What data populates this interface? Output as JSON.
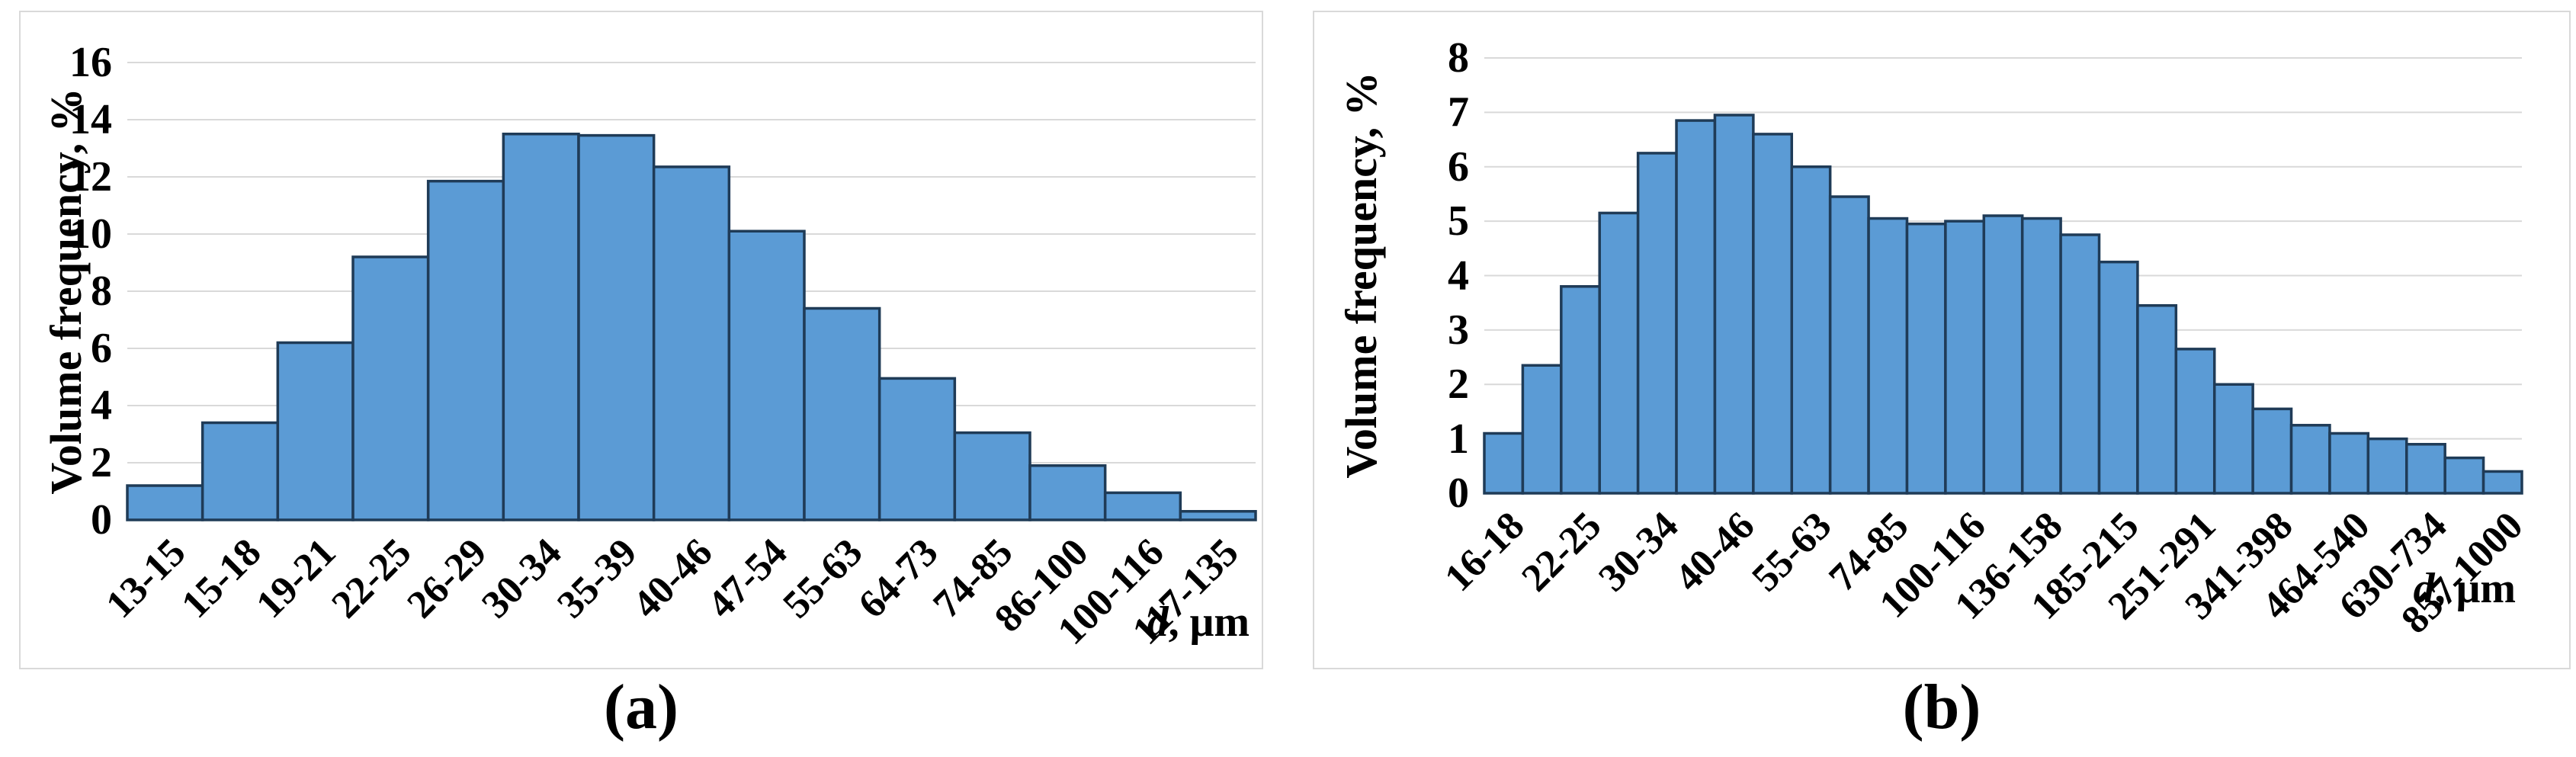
{
  "figure": {
    "captions": [
      "(a)",
      "(b)"
    ]
  },
  "chart_data": [
    {
      "id": "a",
      "type": "bar",
      "title": "",
      "ylabel": "Volume frequency, %",
      "xlabel": "d, μm",
      "xlabel_italic_part": "d",
      "xlabel_rest": ", μm",
      "ylim": [
        0,
        16
      ],
      "ytick_step": 2,
      "yticks": [
        0,
        2,
        4,
        6,
        8,
        10,
        12,
        14,
        16
      ],
      "gridlines": true,
      "x_tick_rotation_deg": 45,
      "bar_fill": "#5B9BD5",
      "bar_stroke": "#1F3B57",
      "gridline_color": "#D9D9D9",
      "categories": [
        "13-15",
        "15-18",
        "19-21",
        "22-25",
        "26-29",
        "30-34",
        "35-39",
        "40-46",
        "47-54",
        "55-63",
        "64-73",
        "74-85",
        "86-100",
        "100-116",
        "117-135"
      ],
      "values": [
        1.2,
        3.4,
        6.2,
        9.2,
        11.85,
        13.5,
        13.45,
        12.35,
        10.1,
        7.4,
        4.95,
        3.05,
        1.9,
        0.95,
        0.3
      ]
    },
    {
      "id": "b",
      "type": "bar",
      "title": "",
      "ylabel": "Volume frequency, %",
      "xlabel": "d, μm",
      "xlabel_italic_part": "d",
      "xlabel_rest": ", μm",
      "ylim": [
        0,
        8
      ],
      "ytick_step": 1,
      "yticks": [
        0,
        1,
        2,
        3,
        4,
        5,
        6,
        7,
        8
      ],
      "gridlines": true,
      "x_tick_rotation_deg": 45,
      "bar_fill": "#5B9BD5",
      "bar_stroke": "#1F3B57",
      "gridline_color": "#D9D9D9",
      "categories": [
        "16-18",
        "",
        "22-25",
        "",
        "30-34",
        "",
        "40-46",
        "",
        "55-63",
        "",
        "74-85",
        "",
        "100-116",
        "",
        "136-158",
        "",
        "185-215",
        "",
        "251-291",
        "",
        "341-398",
        "",
        "464-540",
        "",
        "630-734",
        "",
        "857-1000"
      ],
      "values": [
        1.1,
        2.35,
        3.8,
        5.15,
        6.25,
        6.85,
        6.95,
        6.6,
        6.0,
        5.45,
        5.05,
        4.95,
        5.0,
        5.1,
        5.05,
        4.75,
        4.25,
        3.45,
        2.65,
        2.0,
        1.55,
        1.25,
        1.1,
        1.0,
        0.9,
        0.65,
        0.4
      ]
    }
  ]
}
